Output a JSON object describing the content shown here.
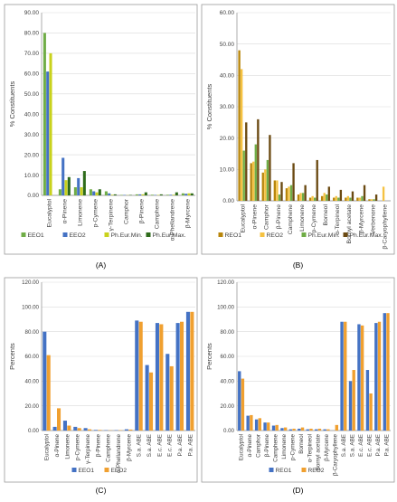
{
  "chart_data": [
    {
      "type": "bar",
      "panel_label": "(A)",
      "ylabel": "% Constituents",
      "ylim": [
        0,
        90
      ],
      "yticks": [
        "0.00",
        "10.00",
        "20.00",
        "30.00",
        "40.00",
        "50.00",
        "60.00",
        "70.00",
        "80.00",
        "90.00"
      ],
      "categories": [
        "Eucalyptol",
        "α-Pinene",
        "Limonene",
        "p-Cymene",
        "γ-Terpinene",
        "Camphor",
        "β-Pinene",
        "Camphene",
        "α-Phellandrene",
        "β-Myrcene"
      ],
      "series": [
        {
          "name": "EEO1",
          "color": "#70ad47",
          "values": [
            80,
            3,
            4,
            3,
            2,
            0.2,
            0.5,
            0.3,
            0.3,
            1
          ]
        },
        {
          "name": "EEO2",
          "color": "#4472c4",
          "values": [
            61,
            18.5,
            8.5,
            2,
            1,
            0.2,
            0.5,
            0.2,
            0.3,
            0.8
          ]
        },
        {
          "name": "Ph.Eur.Min.",
          "color": "#c9d21c",
          "values": [
            70,
            7.5,
            4,
            1.5,
            0.3,
            0.1,
            0.5,
            0.2,
            0.3,
            1
          ]
        },
        {
          "name": "Ph.Eur.Max.",
          "color": "#2e6b1b",
          "values": [
            0,
            9,
            12,
            3,
            0.5,
            0.2,
            1.5,
            0.5,
            1.5,
            1
          ]
        }
      ],
      "legend": "bottom"
    },
    {
      "type": "bar",
      "panel_label": "(B)",
      "ylabel": "% Constituents",
      "ylim": [
        0,
        60
      ],
      "yticks": [
        "0.00",
        "10.00",
        "20.00",
        "30.00",
        "40.00",
        "50.00",
        "60.00"
      ],
      "categories": [
        "Eucalyptol",
        "α-Pinene",
        "Camphor",
        "β-Pinene",
        "Camphene",
        "Limonene",
        "p-Cymene",
        "Borneol",
        "α-Terpineol",
        "Bornyl acetate",
        "β-Myrcene",
        "Verbenone",
        "β-Caryophyllene"
      ],
      "series": [
        {
          "name": "REO1",
          "color": "#b8860b",
          "values": [
            48,
            12,
            9,
            6.5,
            4,
            2,
            1,
            1.5,
            1,
            1,
            1,
            0.5,
            0
          ]
        },
        {
          "name": "REO2",
          "color": "#f5c242",
          "values": [
            42,
            12.5,
            10,
            6.5,
            4.5,
            2.5,
            1.5,
            2.5,
            1.5,
            1.5,
            1,
            0.5,
            4.5
          ]
        },
        {
          "name": "Ph.Eur.Min.",
          "color": "#70ad47",
          "values": [
            16,
            18,
            13,
            2,
            5,
            2.5,
            1,
            2,
            1,
            1,
            1.5,
            0.5,
            0
          ]
        },
        {
          "name": "Ph.Eur.Max.",
          "color": "#6b4a12",
          "values": [
            25,
            26,
            21,
            6,
            12,
            5,
            13,
            4.5,
            3.5,
            3,
            5,
            2,
            0
          ]
        }
      ],
      "legend": "bottom"
    },
    {
      "type": "bar",
      "panel_label": "(C)",
      "ylabel": "Percents",
      "ylim": [
        0,
        120
      ],
      "yticks": [
        "0.00",
        "20.00",
        "40.00",
        "60.00",
        "80.00",
        "100.00",
        "120.00"
      ],
      "categories": [
        "Eucalyptol",
        "α-Pinene",
        "Limonene",
        "p-Cymene",
        "γ-Terpinene",
        "β-Pinene",
        "Camphene",
        "α-Phellandrene",
        "β-Myrcene",
        "S.a. ABE",
        "S.a. ABE",
        "E.c. ABE",
        "E.c. ABE",
        "P.a. ABE",
        "P.a. ABE"
      ],
      "series": [
        {
          "name": "EEO1",
          "color": "#4472c4",
          "values": [
            80,
            3,
            8,
            3,
            2,
            0.5,
            0.3,
            0.3,
            1,
            89,
            53,
            87,
            62,
            87,
            96
          ]
        },
        {
          "name": "EEO2",
          "color": "#f0a030",
          "values": [
            61,
            18,
            4,
            2,
            1,
            0.5,
            0.2,
            0.3,
            0.8,
            88,
            47,
            86,
            52,
            88,
            96
          ]
        }
      ],
      "legend": "bottom"
    },
    {
      "type": "bar",
      "panel_label": "(D)",
      "ylabel": "Percents",
      "ylim": [
        0,
        120
      ],
      "yticks": [
        "0.00",
        "20.00",
        "40.00",
        "60.00",
        "80.00",
        "100.00",
        "120.00"
      ],
      "categories": [
        "Eucalyptol",
        "α-Pinene",
        "Camphor",
        "β-Pinene",
        "Camphene",
        "Limonene",
        "p-Cymene",
        "Borneol",
        "α-Terpineol",
        "Bornyl acetate",
        "β-Myrcene",
        "β-Caryophyllene",
        "S.a. ABE",
        "S.a. ABE",
        "E.c. ABE",
        "E.c. ABE",
        "P.a. ABE",
        "P.a. ABE"
      ],
      "series": [
        {
          "name": "REO1",
          "color": "#4472c4",
          "values": [
            48,
            12,
            9,
            6.5,
            4,
            2,
            1,
            1.5,
            1,
            1,
            1,
            0,
            88,
            40,
            86,
            49,
            87,
            95
          ]
        },
        {
          "name": "REO2",
          "color": "#f0a030",
          "values": [
            42,
            12.5,
            10,
            6.5,
            4.5,
            2.5,
            1.5,
            2.5,
            1.5,
            1.5,
            1,
            4.5,
            88,
            49,
            85,
            30,
            88,
            95
          ]
        }
      ],
      "legend": "bottom"
    }
  ]
}
